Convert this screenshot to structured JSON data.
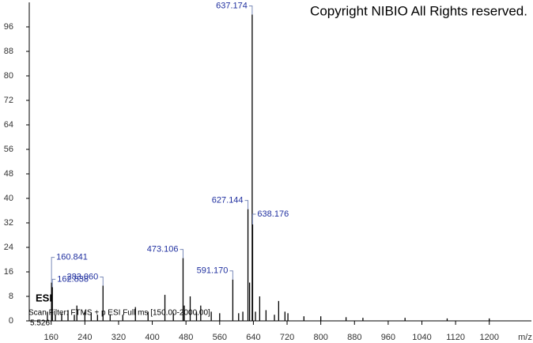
{
  "chart_data": {
    "type": "stick",
    "title": "Copyright NIBIO All Rights reserved.",
    "ionization": "ESI",
    "scan_filter": "Scan Filter: FTMS + p ESI Full ms [150.00-2000.00]",
    "noise_note": "5.526",
    "x_label": "m/z",
    "color": "#000000",
    "label_color": "#1f2f9f",
    "xlim": [
      108,
      1300
    ],
    "ylim": [
      0,
      104
    ],
    "xticks": [
      160,
      240,
      320,
      400,
      480,
      560,
      640,
      720,
      800,
      880,
      960,
      1040,
      1120,
      1200
    ],
    "yticks": [
      0,
      8,
      16,
      24,
      32,
      40,
      48,
      56,
      64,
      72,
      80,
      88,
      96
    ],
    "x": [
      151,
      160.841,
      162.838,
      170,
      185,
      200,
      215,
      221,
      240,
      255,
      270,
      283.06,
      300,
      330,
      360,
      390,
      430,
      450,
      473.106,
      476,
      490,
      505,
      515,
      540,
      560,
      591.17,
      605,
      615,
      627.144,
      631,
      637.174,
      638.176,
      645,
      655,
      670,
      690,
      700,
      715,
      722,
      760,
      800,
      860,
      900,
      1000,
      1100,
      1200
    ],
    "values": [
      3,
      12.5,
      11,
      2,
      2.5,
      3.5,
      2,
      5,
      3,
      2.5,
      2,
      11.5,
      2,
      2,
      4.5,
      3,
      8.5,
      2.5,
      20.5,
      5,
      8,
      3,
      5,
      3,
      2.5,
      13.5,
      2.5,
      3,
      36.5,
      12.5,
      100,
      31.5,
      3,
      8,
      3.5,
      2,
      6.5,
      3,
      2.5,
      1.5,
      1.5,
      1.2,
      1,
      1,
      0.8,
      0.8
    ],
    "peak_labels": [
      null,
      "160.841",
      "162.838",
      null,
      null,
      null,
      null,
      null,
      null,
      null,
      null,
      "283.060",
      null,
      null,
      null,
      null,
      null,
      null,
      "473.106",
      null,
      null,
      null,
      null,
      null,
      null,
      "591.170",
      null,
      null,
      "627.144",
      null,
      "637.174",
      "638.176",
      null,
      null,
      null,
      null,
      null,
      null,
      null,
      null,
      null,
      null,
      null,
      null,
      null,
      null
    ]
  }
}
